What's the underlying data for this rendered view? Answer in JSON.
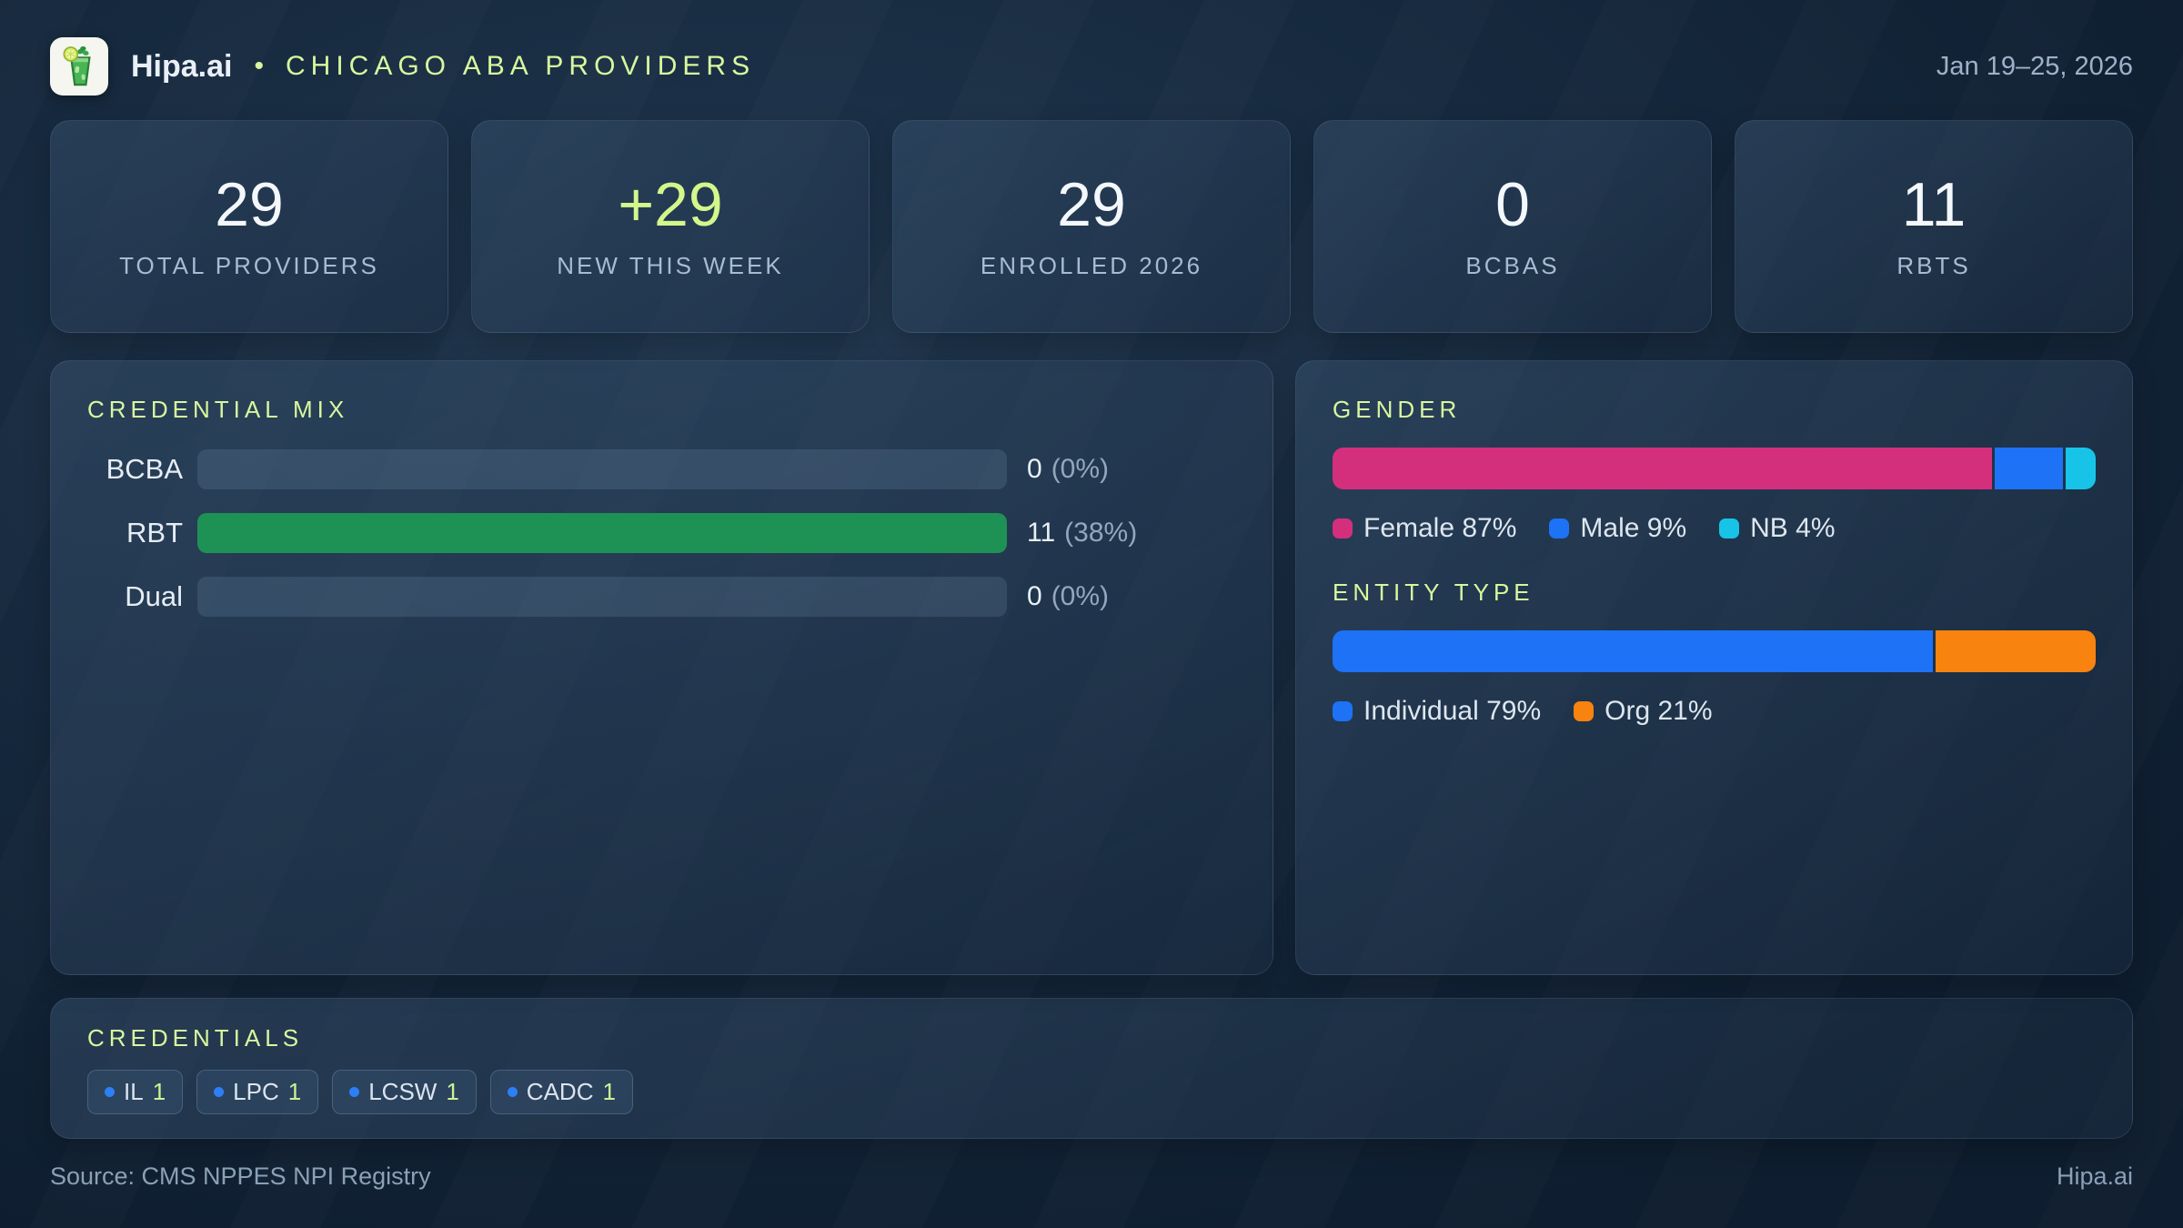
{
  "header": {
    "brand": "Hipa.ai",
    "separator": "•",
    "title": "CHICAGO ABA PROVIDERS",
    "date_range": "Jan 19–25, 2026"
  },
  "colors": {
    "accent_lime": "#d8f79e",
    "green": "#1e9254",
    "pink": "#d42f7d",
    "blue": "#1d72f5",
    "cyan": "#17c4e8",
    "orange": "#f8830f"
  },
  "stats": [
    {
      "value": "29",
      "label": "TOTAL PROVIDERS",
      "accent": false
    },
    {
      "value": "+29",
      "label": "NEW THIS WEEK",
      "accent": true
    },
    {
      "value": "29",
      "label": "ENROLLED 2026",
      "accent": false
    },
    {
      "value": "0",
      "label": "BCBAS",
      "accent": false
    },
    {
      "value": "11",
      "label": "RBTS",
      "accent": false
    }
  ],
  "credential_mix": {
    "title": "CREDENTIAL MIX",
    "rows": [
      {
        "label": "BCBA",
        "count": "0",
        "pct": "(0%)",
        "fill_pct": 0,
        "color": "#1e9254"
      },
      {
        "label": "RBT",
        "count": "11",
        "pct": "(38%)",
        "fill_pct": 100,
        "color": "#1e9254"
      },
      {
        "label": "Dual",
        "count": "0",
        "pct": "(0%)",
        "fill_pct": 0,
        "color": "#1e9254"
      }
    ]
  },
  "gender": {
    "title": "GENDER",
    "segments": [
      {
        "name": "Female",
        "pct": 87,
        "color": "#d42f7d",
        "legend": "Female 87%"
      },
      {
        "name": "Male",
        "pct": 9,
        "color": "#1d72f5",
        "legend": "Male 9%"
      },
      {
        "name": "NB",
        "pct": 4,
        "color": "#17c4e8",
        "legend": "NB 4%"
      }
    ]
  },
  "entity_type": {
    "title": "ENTITY TYPE",
    "segments": [
      {
        "name": "Individual",
        "pct": 79,
        "color": "#1d72f5",
        "legend": "Individual 79%"
      },
      {
        "name": "Org",
        "pct": 21,
        "color": "#f8830f",
        "legend": "Org 21%"
      }
    ]
  },
  "credentials": {
    "title": "CREDENTIALS",
    "chips": [
      {
        "label": "IL",
        "count": "1"
      },
      {
        "label": "LPC",
        "count": "1"
      },
      {
        "label": "LCSW",
        "count": "1"
      },
      {
        "label": "CADC",
        "count": "1"
      }
    ]
  },
  "footer": {
    "source": "Source: CMS NPPES NPI Registry",
    "brand": "Hipa.ai"
  },
  "chart_data": [
    {
      "type": "bar",
      "title": "CREDENTIAL MIX",
      "categories": [
        "BCBA",
        "RBT",
        "Dual"
      ],
      "values": [
        0,
        11,
        0
      ],
      "value_labels": [
        "0 (0%)",
        "11 (38%)",
        "0 (0%)"
      ],
      "orientation": "horizontal"
    },
    {
      "type": "bar",
      "title": "GENDER",
      "stacked": true,
      "categories": [
        "Female",
        "Male",
        "NB"
      ],
      "values": [
        87,
        9,
        4
      ],
      "unit": "%"
    },
    {
      "type": "bar",
      "title": "ENTITY TYPE",
      "stacked": true,
      "categories": [
        "Individual",
        "Org"
      ],
      "values": [
        79,
        21
      ],
      "unit": "%"
    }
  ]
}
